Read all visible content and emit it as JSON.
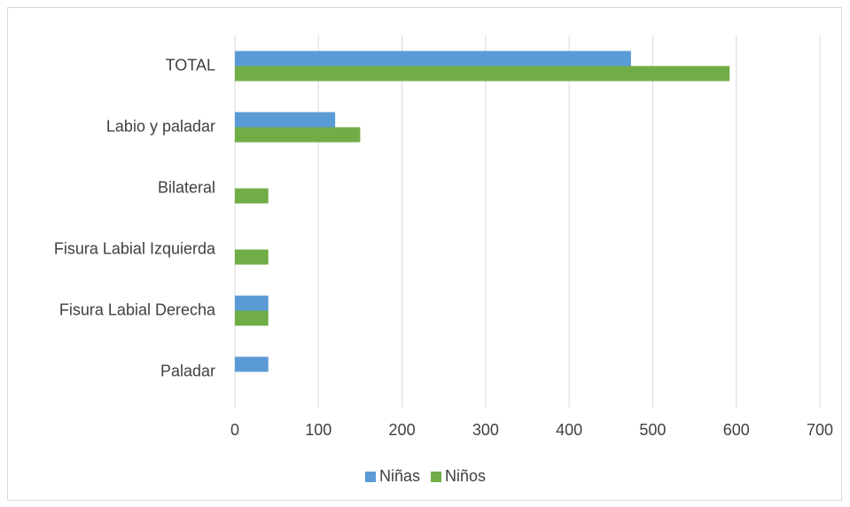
{
  "chart_data": {
    "type": "bar",
    "orientation": "horizontal",
    "categories": [
      "TOTAL",
      "Labio y paladar",
      "Bilateral",
      "Fisura Labial Izquierda",
      "Fisura Labial Derecha",
      "Paladar"
    ],
    "series": [
      {
        "name": "Niñas",
        "color": "#5b9bd5",
        "values": [
          474,
          120,
          0,
          0,
          40,
          40
        ]
      },
      {
        "name": "Niños",
        "color": "#70ad47",
        "values": [
          592,
          150,
          40,
          40,
          40,
          0
        ]
      }
    ],
    "xlim": [
      0,
      700
    ],
    "xticks": [
      0,
      100,
      200,
      300,
      400,
      500,
      600,
      700
    ],
    "grid": true,
    "legend": "bottom"
  }
}
